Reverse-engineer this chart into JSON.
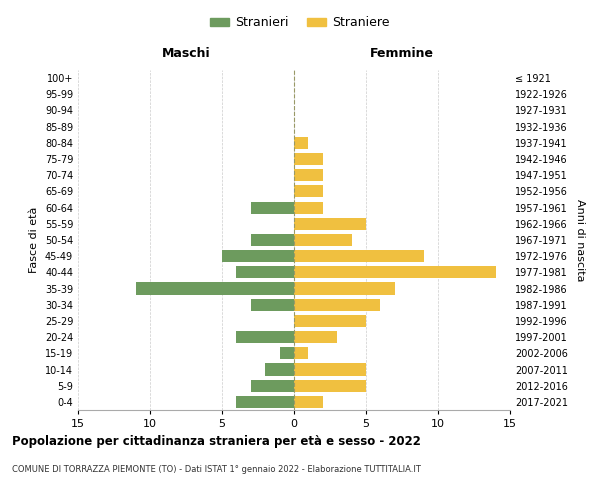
{
  "age_groups": [
    "0-4",
    "5-9",
    "10-14",
    "15-19",
    "20-24",
    "25-29",
    "30-34",
    "35-39",
    "40-44",
    "45-49",
    "50-54",
    "55-59",
    "60-64",
    "65-69",
    "70-74",
    "75-79",
    "80-84",
    "85-89",
    "90-94",
    "95-99",
    "100+"
  ],
  "birth_years": [
    "2017-2021",
    "2012-2016",
    "2007-2011",
    "2002-2006",
    "1997-2001",
    "1992-1996",
    "1987-1991",
    "1982-1986",
    "1977-1981",
    "1972-1976",
    "1967-1971",
    "1962-1966",
    "1957-1961",
    "1952-1956",
    "1947-1951",
    "1942-1946",
    "1937-1941",
    "1932-1936",
    "1927-1931",
    "1922-1926",
    "≤ 1921"
  ],
  "maschi": [
    4,
    3,
    2,
    1,
    4,
    0,
    3,
    11,
    4,
    5,
    3,
    0,
    3,
    0,
    0,
    0,
    0,
    0,
    0,
    0,
    0
  ],
  "femmine": [
    2,
    5,
    5,
    1,
    3,
    5,
    6,
    7,
    14,
    9,
    4,
    5,
    2,
    2,
    2,
    2,
    1,
    0,
    0,
    0,
    0
  ],
  "color_maschi": "#6d9b5e",
  "color_femmine": "#f0c040",
  "title": "Popolazione per cittadinanza straniera per età e sesso - 2022",
  "subtitle": "COMUNE DI TORRAZZA PIEMONTE (TO) - Dati ISTAT 1° gennaio 2022 - Elaborazione TUTTITALIA.IT",
  "xlabel_left": "Maschi",
  "xlabel_right": "Femmine",
  "ylabel_left": "Fasce di età",
  "ylabel_right": "Anni di nascita",
  "legend_maschi": "Stranieri",
  "legend_femmine": "Straniere",
  "xlim": 15,
  "background_color": "#ffffff",
  "grid_color": "#cccccc",
  "centerline_color": "#999966"
}
